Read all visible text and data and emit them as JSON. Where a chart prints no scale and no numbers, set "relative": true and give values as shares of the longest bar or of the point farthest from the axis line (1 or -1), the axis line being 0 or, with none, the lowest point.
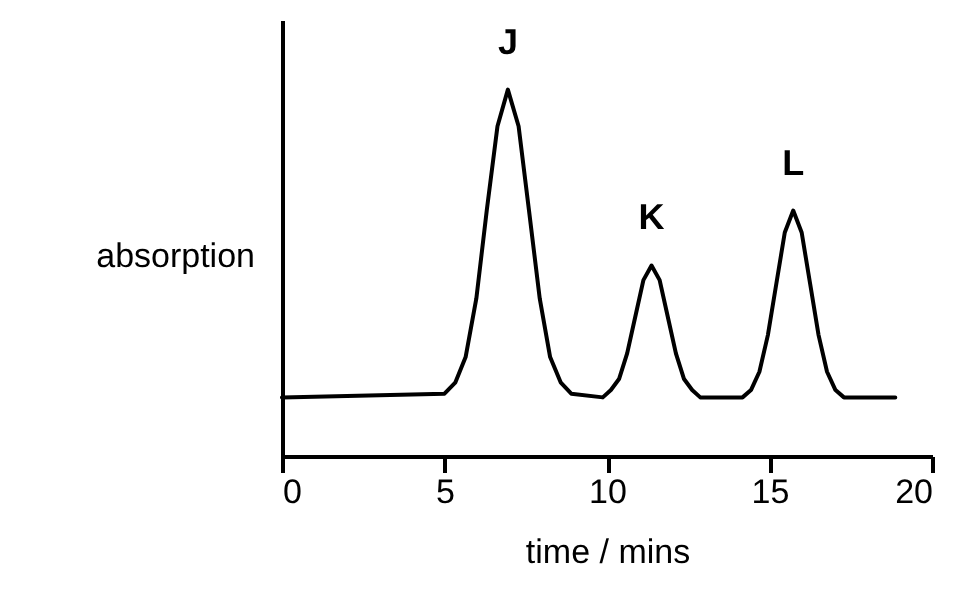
{
  "chart_data": {
    "type": "line",
    "relative": true,
    "xlabel": "time / mins",
    "ylabel": "absorption",
    "xlim": [
      0,
      20
    ],
    "xticks": [
      0,
      5,
      10,
      15,
      20
    ],
    "grid": false,
    "legend": false,
    "marker": "none",
    "line_style": "solid",
    "x": [
      0,
      5.0,
      5.33,
      5.65,
      5.98,
      6.3,
      6.63,
      6.95,
      7.28,
      7.6,
      7.93,
      8.25,
      8.58,
      8.9,
      9.87,
      10.12,
      10.37,
      10.62,
      10.87,
      11.12,
      11.37,
      11.62,
      11.87,
      12.12,
      12.37,
      12.62,
      12.87,
      14.17,
      14.43,
      14.69,
      14.95,
      15.21,
      15.47,
      15.73,
      15.99,
      16.25,
      16.51,
      16.77,
      17.03,
      17.29,
      18.87
    ],
    "series": [
      {
        "color": "#000000",
        "values": [
          0.16,
          0.17,
          0.2,
          0.27,
          0.43,
          0.67,
          0.9,
          1.0,
          0.9,
          0.67,
          0.43,
          0.27,
          0.2,
          0.17,
          0.16,
          0.18,
          0.21,
          0.28,
          0.38,
          0.48,
          0.52,
          0.48,
          0.38,
          0.28,
          0.21,
          0.18,
          0.16,
          0.16,
          0.18,
          0.23,
          0.33,
          0.47,
          0.61,
          0.67,
          0.61,
          0.47,
          0.33,
          0.23,
          0.18,
          0.16,
          0.16
        ]
      }
    ],
    "annotations": [
      {
        "text": "J",
        "x": 6.95,
        "y": 1.0
      },
      {
        "text": "K",
        "x": 11.37,
        "y": 0.52
      },
      {
        "text": "L",
        "x": 15.73,
        "y": 0.67
      }
    ]
  }
}
